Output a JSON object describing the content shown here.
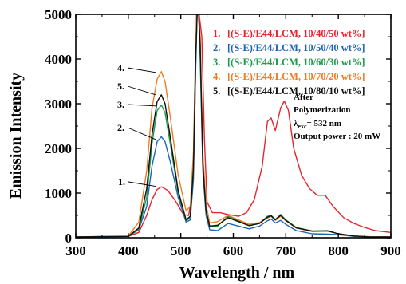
{
  "chart_data": {
    "type": "line",
    "title": "",
    "xlabel": "Wavelength / nm",
    "ylabel": "Emission Intensity",
    "xlim": [
      300,
      900
    ],
    "ylim": [
      0,
      5000
    ],
    "xticks": [
      "300",
      "400",
      "500",
      "600",
      "700",
      "800",
      "900"
    ],
    "xtick_values": [
      300,
      400,
      500,
      600,
      700,
      800,
      900
    ],
    "yticks": [
      "0",
      "1000",
      "2000",
      "3000",
      "4000",
      "5000"
    ],
    "ytick_values": [
      0,
      1000,
      2000,
      3000,
      4000,
      5000
    ],
    "grid": false,
    "legend_position": "top-right",
    "annotations": {
      "line1": "After",
      "line2": "Polymerization",
      "lambda_symbol": "λ",
      "lambda_sub": "exc",
      "lambda_value": "= 532 nm",
      "power": "Output power : 20 mW"
    },
    "series": [
      {
        "name": "[(S-E)/E44/LCM, 10/40/50 wt%]",
        "index_label": "1.",
        "callout": "1.",
        "color": "#e8242b",
        "x": [
          300,
          400,
          420,
          435,
          445,
          455,
          463,
          475,
          490,
          505,
          515,
          522,
          527,
          530,
          532,
          535,
          540,
          545,
          550,
          560,
          575,
          590,
          610,
          625,
          640,
          655,
          665,
          672,
          680,
          690,
          697,
          705,
          715,
          730,
          745,
          760,
          775,
          790,
          810,
          830,
          850,
          870,
          900
        ],
        "y": [
          20,
          30,
          120,
          500,
          850,
          1080,
          1140,
          1060,
          820,
          520,
          500,
          1000,
          3000,
          5000,
          5000,
          5000,
          4500,
          2200,
          800,
          560,
          560,
          520,
          480,
          560,
          850,
          1600,
          2600,
          2680,
          2400,
          2900,
          3060,
          2850,
          2000,
          1400,
          1100,
          950,
          950,
          700,
          450,
          320,
          230,
          160,
          120
        ]
      },
      {
        "name": "[(S-E)/E44/LCM, 10/50/40 wt%]",
        "index_label": "2.",
        "callout": "2.",
        "color": "#1f64b4",
        "x": [
          300,
          400,
          420,
          435,
          445,
          455,
          463,
          470,
          480,
          495,
          510,
          518,
          524,
          528,
          531,
          534,
          537,
          542,
          548,
          555,
          570,
          590,
          610,
          630,
          650,
          665,
          672,
          680,
          690,
          700,
          720,
          750,
          780,
          800,
          830,
          860,
          900
        ],
        "y": [
          20,
          30,
          180,
          700,
          1600,
          2150,
          2260,
          2150,
          1700,
          900,
          350,
          400,
          1300,
          3600,
          5000,
          5000,
          4000,
          1500,
          500,
          180,
          160,
          320,
          260,
          200,
          260,
          380,
          420,
          330,
          390,
          300,
          160,
          90,
          80,
          70,
          30,
          20,
          20
        ]
      },
      {
        "name": "[(S-E)/E44/LCM, 10/60/30 wt%]",
        "index_label": "3.",
        "callout": "3.",
        "color": "#1a9a4a",
        "x": [
          300,
          400,
          420,
          435,
          445,
          455,
          463,
          470,
          480,
          495,
          510,
          518,
          524,
          528,
          531,
          534,
          537,
          542,
          548,
          555,
          570,
          590,
          610,
          630,
          650,
          665,
          672,
          680,
          690,
          700,
          720,
          750,
          780,
          800,
          830,
          860,
          900
        ],
        "y": [
          20,
          30,
          200,
          900,
          2100,
          2850,
          2970,
          2800,
          2100,
          1000,
          380,
          450,
          1500,
          3800,
          5000,
          5000,
          4200,
          1600,
          560,
          250,
          260,
          480,
          380,
          280,
          330,
          480,
          500,
          410,
          520,
          400,
          230,
          150,
          160,
          90,
          40,
          20,
          20
        ]
      },
      {
        "name": "[(S-E)/E44/LCM, 10/70/20 wt%]",
        "index_label": "4.",
        "callout": "4.",
        "color": "#ef7c23",
        "x": [
          300,
          400,
          420,
          435,
          445,
          455,
          463,
          470,
          480,
          495,
          510,
          518,
          524,
          528,
          531,
          534,
          537,
          542,
          548,
          555,
          570,
          590,
          610,
          630,
          650,
          665,
          672,
          680,
          690,
          700,
          720,
          750,
          780,
          800,
          830,
          860,
          900
        ],
        "y": [
          20,
          40,
          350,
          1500,
          2900,
          3550,
          3720,
          3500,
          2700,
          1400,
          600,
          700,
          1900,
          4200,
          5000,
          5000,
          4500,
          1900,
          750,
          330,
          360,
          500,
          400,
          300,
          340,
          440,
          480,
          390,
          480,
          380,
          220,
          140,
          150,
          90,
          40,
          25,
          20
        ]
      },
      {
        "name": "[(S-E)/E44/LCM, 10/80/10 wt%]",
        "index_label": "5.",
        "callout": "5.",
        "color": "#111111",
        "x": [
          300,
          400,
          420,
          435,
          445,
          455,
          463,
          470,
          480,
          495,
          510,
          518,
          524,
          528,
          531,
          534,
          537,
          542,
          548,
          555,
          570,
          590,
          610,
          630,
          650,
          665,
          672,
          680,
          690,
          700,
          720,
          750,
          780,
          800,
          830,
          860,
          900
        ],
        "y": [
          20,
          30,
          220,
          1100,
          2300,
          3050,
          3200,
          3000,
          2250,
          1050,
          400,
          480,
          1550,
          3900,
          5000,
          5000,
          4300,
          1650,
          600,
          260,
          280,
          450,
          360,
          270,
          320,
          460,
          490,
          400,
          500,
          390,
          220,
          150,
          150,
          90,
          40,
          20,
          20
        ]
      }
    ]
  }
}
